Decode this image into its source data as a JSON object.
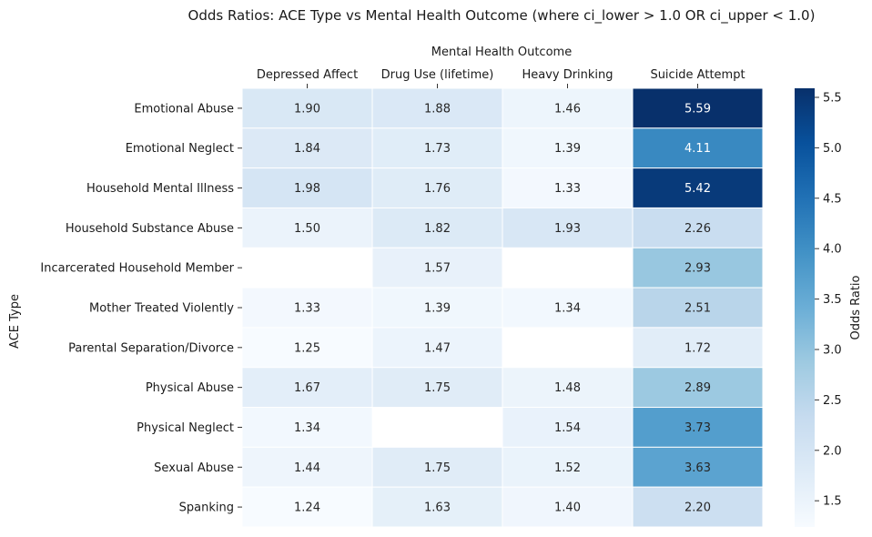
{
  "chart_data": {
    "type": "heatmap",
    "title": "Odds Ratios: ACE Type vs Mental Health Outcome (where ci_lower > 1.0 OR ci_upper < 1.0)",
    "xlabel": "Mental Health Outcome",
    "ylabel": "ACE Type",
    "x": [
      "Depressed Affect",
      "Drug Use (lifetime)",
      "Heavy Drinking",
      "Suicide Attempt"
    ],
    "y": [
      "Emotional Abuse",
      "Emotional Neglect",
      "Household Mental Illness",
      "Household Substance Abuse",
      "Incarcerated Household Member",
      "Mother Treated Violently",
      "Parental Separation/Divorce",
      "Physical Abuse",
      "Physical Neglect",
      "Sexual Abuse",
      "Spanking"
    ],
    "values": [
      [
        1.9,
        1.88,
        1.46,
        5.59
      ],
      [
        1.84,
        1.73,
        1.39,
        4.11
      ],
      [
        1.98,
        1.76,
        1.33,
        5.42
      ],
      [
        1.5,
        1.82,
        1.93,
        2.26
      ],
      [
        null,
        1.57,
        null,
        2.93
      ],
      [
        1.33,
        1.39,
        1.34,
        2.51
      ],
      [
        1.25,
        1.47,
        null,
        1.72
      ],
      [
        1.67,
        1.75,
        1.48,
        2.89
      ],
      [
        1.34,
        null,
        1.54,
        3.73
      ],
      [
        1.44,
        1.75,
        1.52,
        3.63
      ],
      [
        1.24,
        1.63,
        1.4,
        2.2
      ]
    ],
    "value_format": "2 decimals",
    "colormap": "Blues",
    "color_range": [
      1.24,
      5.59
    ],
    "colorbar": {
      "label": "Odds Ratio",
      "ticks": [
        1.5,
        2.0,
        2.5,
        3.0,
        3.5,
        4.0,
        4.5,
        5.0,
        5.5
      ],
      "tick_labels": [
        "1.5",
        "2.0",
        "2.5",
        "3.0",
        "3.5",
        "4.0",
        "4.5",
        "5.0",
        "5.5"
      ]
    },
    "x_axis_position": "top",
    "grid": false
  }
}
